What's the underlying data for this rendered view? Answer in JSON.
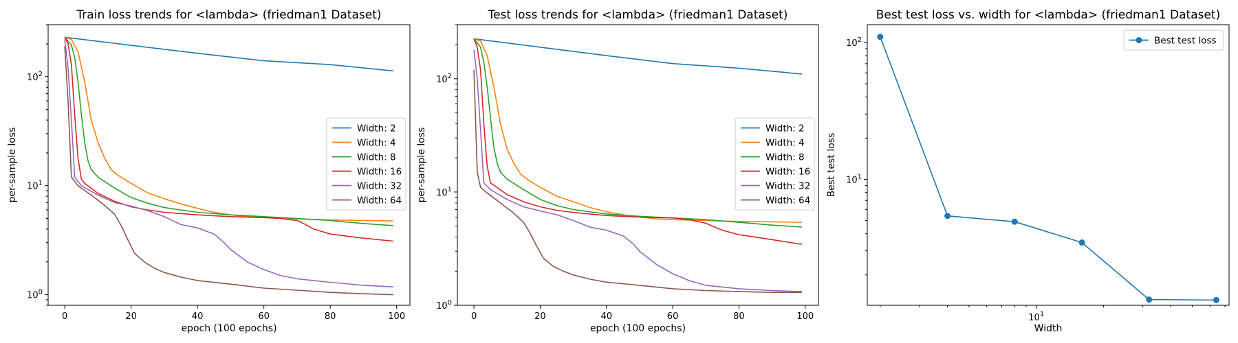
{
  "chart_data": [
    {
      "type": "line",
      "title": "Train loss trends for <lambda> (friedman1 Dataset)",
      "xlabel": "epoch (100 epochs)",
      "ylabel": "per-sample loss",
      "xscale": "linear",
      "yscale": "log",
      "xlim": [
        -5,
        104
      ],
      "ylim": [
        0.8,
        300
      ],
      "xticks": [
        0,
        20,
        40,
        60,
        80,
        100
      ],
      "yticks": [
        1,
        10,
        100
      ],
      "ytick_labels": [
        "10^0",
        "10^1",
        "10^2"
      ],
      "grid": false,
      "legend": "center-right",
      "series": [
        {
          "name": "Width: 2",
          "color": "#1f77b4",
          "points": [
            [
              0,
              230
            ],
            [
              20,
              194
            ],
            [
              40,
              164
            ],
            [
              60,
              140
            ],
            [
              80,
              129
            ],
            [
              99,
              113
            ]
          ]
        },
        {
          "name": "Width: 4",
          "color": "#ff7f0e",
          "points": [
            [
              0,
              230
            ],
            [
              2,
              220
            ],
            [
              4,
              170
            ],
            [
              6,
              90
            ],
            [
              8,
              40
            ],
            [
              10,
              25
            ],
            [
              12,
              18
            ],
            [
              14,
              14
            ],
            [
              16,
              12.5
            ],
            [
              20,
              10.5
            ],
            [
              25,
              8.6
            ],
            [
              30,
              7.6
            ],
            [
              35,
              6.8
            ],
            [
              40,
              6.2
            ],
            [
              45,
              5.7
            ],
            [
              50,
              5.4
            ],
            [
              55,
              5.2
            ],
            [
              60,
              5.1
            ],
            [
              70,
              4.95
            ],
            [
              80,
              4.85
            ],
            [
              90,
              4.8
            ],
            [
              99,
              4.75
            ]
          ]
        },
        {
          "name": "Width: 8",
          "color": "#2ca02c",
          "points": [
            [
              0,
              230
            ],
            [
              2,
              195
            ],
            [
              3,
              150
            ],
            [
              4,
              90
            ],
            [
              5,
              45
            ],
            [
              6,
              25
            ],
            [
              7,
              17
            ],
            [
              8,
              14
            ],
            [
              10,
              12
            ],
            [
              15,
              9.5
            ],
            [
              20,
              7.8
            ],
            [
              25,
              6.9
            ],
            [
              30,
              6.3
            ],
            [
              40,
              5.7
            ],
            [
              50,
              5.4
            ],
            [
              60,
              5.2
            ],
            [
              70,
              5.0
            ],
            [
              80,
              4.8
            ],
            [
              90,
              4.5
            ],
            [
              99,
              4.3
            ]
          ]
        },
        {
          "name": "Width: 16",
          "color": "#d62728",
          "points": [
            [
              0,
              230
            ],
            [
              1,
              200
            ],
            [
              2,
              130
            ],
            [
              3,
              45
            ],
            [
              4,
              18
            ],
            [
              5,
              11.5
            ],
            [
              6,
              10.5
            ],
            [
              10,
              8.5
            ],
            [
              15,
              7.2
            ],
            [
              20,
              6.4
            ],
            [
              25,
              6.0
            ],
            [
              30,
              5.7
            ],
            [
              40,
              5.4
            ],
            [
              50,
              5.2
            ],
            [
              60,
              5.1
            ],
            [
              65,
              5.0
            ],
            [
              70,
              4.8
            ],
            [
              72,
              4.5
            ],
            [
              75,
              4.0
            ],
            [
              80,
              3.6
            ],
            [
              90,
              3.3
            ],
            [
              99,
              3.1
            ]
          ]
        },
        {
          "name": "Width: 32",
          "color": "#9467bd",
          "points": [
            [
              0,
              220
            ],
            [
              1,
              120
            ],
            [
              2,
              40
            ],
            [
              3,
              12
            ],
            [
              5,
              10
            ],
            [
              10,
              8.2
            ],
            [
              15,
              7.0
            ],
            [
              20,
              6.5
            ],
            [
              25,
              5.9
            ],
            [
              30,
              5.2
            ],
            [
              35,
              4.4
            ],
            [
              40,
              4.1
            ],
            [
              45,
              3.6
            ],
            [
              48,
              3.0
            ],
            [
              50,
              2.6
            ],
            [
              55,
              2.0
            ],
            [
              60,
              1.7
            ],
            [
              65,
              1.5
            ],
            [
              70,
              1.4
            ],
            [
              80,
              1.3
            ],
            [
              90,
              1.22
            ],
            [
              99,
              1.18
            ]
          ]
        },
        {
          "name": "Width: 64",
          "color": "#8c564b",
          "points": [
            [
              0,
              190
            ],
            [
              1,
              60
            ],
            [
              2,
              12
            ],
            [
              4,
              10
            ],
            [
              8,
              8.2
            ],
            [
              12,
              6.6
            ],
            [
              15,
              5.5
            ],
            [
              17,
              4.3
            ],
            [
              19,
              3.2
            ],
            [
              21,
              2.4
            ],
            [
              24,
              2.0
            ],
            [
              27,
              1.75
            ],
            [
              30,
              1.6
            ],
            [
              35,
              1.45
            ],
            [
              40,
              1.35
            ],
            [
              50,
              1.25
            ],
            [
              60,
              1.15
            ],
            [
              70,
              1.1
            ],
            [
              80,
              1.05
            ],
            [
              90,
              1.02
            ],
            [
              99,
              1.0
            ]
          ]
        }
      ]
    },
    {
      "type": "line",
      "title": "Test loss trends for <lambda> (friedman1 Dataset)",
      "xlabel": "epoch (100 epochs)",
      "ylabel": "per-sample loss",
      "xscale": "linear",
      "yscale": "log",
      "xlim": [
        -5,
        104
      ],
      "ylim": [
        1,
        300
      ],
      "xticks": [
        0,
        20,
        40,
        60,
        80,
        100
      ],
      "yticks": [
        1,
        10,
        100
      ],
      "ytick_labels": [
        "10^0",
        "10^1",
        "10^2"
      ],
      "grid": false,
      "legend": "center-right",
      "series": [
        {
          "name": "Width: 2",
          "color": "#1f77b4",
          "points": [
            [
              0,
              225
            ],
            [
              20,
              190
            ],
            [
              40,
              160
            ],
            [
              60,
              136
            ],
            [
              80,
              124
            ],
            [
              99,
              110
            ]
          ]
        },
        {
          "name": "Width: 4",
          "color": "#ff7f0e",
          "points": [
            [
              0,
              225
            ],
            [
              2,
              215
            ],
            [
              4,
              160
            ],
            [
              6,
              85
            ],
            [
              8,
              40
            ],
            [
              10,
              24
            ],
            [
              12,
              18
            ],
            [
              14,
              14.5
            ],
            [
              16,
              13
            ],
            [
              20,
              11
            ],
            [
              25,
              9.2
            ],
            [
              30,
              8.2
            ],
            [
              35,
              7.3
            ],
            [
              40,
              6.7
            ],
            [
              45,
              6.3
            ],
            [
              50,
              6.0
            ],
            [
              55,
              5.8
            ],
            [
              60,
              5.7
            ],
            [
              70,
              5.6
            ],
            [
              80,
              5.5
            ],
            [
              90,
              5.45
            ],
            [
              99,
              5.4
            ]
          ]
        },
        {
          "name": "Width: 8",
          "color": "#2ca02c",
          "points": [
            [
              0,
              225
            ],
            [
              2,
              190
            ],
            [
              3,
              140
            ],
            [
              4,
              85
            ],
            [
              5,
              45
            ],
            [
              6,
              25
            ],
            [
              7,
              18
            ],
            [
              8,
              15
            ],
            [
              10,
              13
            ],
            [
              15,
              10.5
            ],
            [
              20,
              8.6
            ],
            [
              25,
              7.6
            ],
            [
              30,
              7.0
            ],
            [
              40,
              6.4
            ],
            [
              50,
              6.1
            ],
            [
              60,
              5.9
            ],
            [
              70,
              5.7
            ],
            [
              80,
              5.4
            ],
            [
              90,
              5.1
            ],
            [
              99,
              4.9
            ]
          ]
        },
        {
          "name": "Width: 16",
          "color": "#d62728",
          "points": [
            [
              0,
              225
            ],
            [
              1,
              190
            ],
            [
              2,
              120
            ],
            [
              3,
              40
            ],
            [
              4,
              17
            ],
            [
              5,
              12
            ],
            [
              6,
              11.5
            ],
            [
              10,
              9.5
            ],
            [
              15,
              8.2
            ],
            [
              20,
              7.4
            ],
            [
              25,
              6.9
            ],
            [
              30,
              6.6
            ],
            [
              40,
              6.2
            ],
            [
              50,
              6.0
            ],
            [
              60,
              5.9
            ],
            [
              65,
              5.7
            ],
            [
              70,
              5.3
            ],
            [
              72,
              5.0
            ],
            [
              75,
              4.6
            ],
            [
              80,
              4.2
            ],
            [
              90,
              3.8
            ],
            [
              99,
              3.45
            ]
          ]
        },
        {
          "name": "Width: 32",
          "color": "#9467bd",
          "points": [
            [
              0,
              180
            ],
            [
              1,
              100
            ],
            [
              2,
              35
            ],
            [
              3,
              12
            ],
            [
              5,
              10.5
            ],
            [
              10,
              8.6
            ],
            [
              15,
              7.4
            ],
            [
              20,
              6.8
            ],
            [
              25,
              6.3
            ],
            [
              30,
              5.6
            ],
            [
              35,
              4.9
            ],
            [
              40,
              4.6
            ],
            [
              45,
              4.1
            ],
            [
              48,
              3.5
            ],
            [
              50,
              3.0
            ],
            [
              55,
              2.3
            ],
            [
              60,
              1.9
            ],
            [
              65,
              1.65
            ],
            [
              70,
              1.5
            ],
            [
              80,
              1.4
            ],
            [
              90,
              1.35
            ],
            [
              99,
              1.32
            ]
          ]
        },
        {
          "name": "Width: 64",
          "color": "#8c564b",
          "points": [
            [
              0,
              120
            ],
            [
              1,
              15
            ],
            [
              2,
              11
            ],
            [
              4,
              9.8
            ],
            [
              8,
              8.0
            ],
            [
              12,
              6.5
            ],
            [
              15,
              5.4
            ],
            [
              17,
              4.3
            ],
            [
              19,
              3.3
            ],
            [
              21,
              2.6
            ],
            [
              24,
              2.2
            ],
            [
              27,
              2.0
            ],
            [
              30,
              1.85
            ],
            [
              35,
              1.7
            ],
            [
              40,
              1.6
            ],
            [
              50,
              1.5
            ],
            [
              60,
              1.4
            ],
            [
              70,
              1.35
            ],
            [
              80,
              1.32
            ],
            [
              90,
              1.3
            ],
            [
              99,
              1.3
            ]
          ]
        }
      ]
    },
    {
      "type": "line",
      "title": "Best test loss vs. width for <lambda> (friedman1 Dataset)",
      "xlabel": "Width",
      "ylabel": "Best test loss",
      "xscale": "log",
      "yscale": "log",
      "xlim": [
        1.75,
        73
      ],
      "ylim": [
        1.2,
        135
      ],
      "xticks": [
        10
      ],
      "xtick_labels": [
        "10^1"
      ],
      "yticks": [
        10,
        100
      ],
      "ytick_labels": [
        "10^1",
        "10^2"
      ],
      "grid": false,
      "legend": "top-right",
      "series": [
        {
          "name": "Best test loss",
          "color": "#1f77b4",
          "marker": "circle",
          "points": [
            [
              2,
              110
            ],
            [
              4,
              5.4
            ],
            [
              8,
              4.9
            ],
            [
              16,
              3.45
            ],
            [
              32,
              1.32
            ],
            [
              64,
              1.31
            ]
          ]
        }
      ]
    }
  ]
}
